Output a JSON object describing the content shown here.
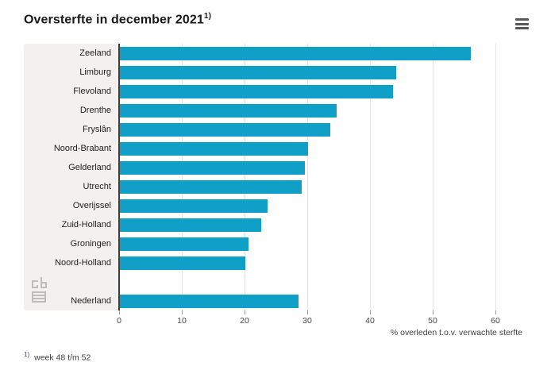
{
  "header": {
    "title": "Oversterfte in december 2021",
    "title_footnote_marker": "1)"
  },
  "chart_data": {
    "type": "bar",
    "orientation": "horizontal",
    "title": "Oversterfte in december 2021",
    "categories": [
      "Zeeland",
      "Limburg",
      "Flevoland",
      "Drenthe",
      "Fryslân",
      "Noord-Brabant",
      "Gelderland",
      "Utrecht",
      "Overijssel",
      "Zuid-Holland",
      "Groningen",
      "Noord-Holland",
      "Nederland"
    ],
    "values": [
      56,
      44,
      43.5,
      34.5,
      33.5,
      30,
      29.5,
      29,
      23.5,
      22.5,
      20.5,
      20,
      28.5
    ],
    "gap_before_last": true,
    "xlabel": "% overleden t.o.v. verwachte sterfte",
    "ylabel": "",
    "xlim": [
      0,
      60
    ],
    "xticks": [
      0,
      10,
      20,
      30,
      40,
      50,
      60
    ],
    "grid": "vertical",
    "legend": "none",
    "bar_color": "#0f9fc7",
    "panel_color": "#f2f1ef",
    "gridline_color": "#e4e4e4"
  },
  "footnote": {
    "marker": "1)",
    "text": "week 48 t/m 52"
  },
  "icons": {
    "menu": "hamburger-menu-icon",
    "logo": "cbs-logo"
  }
}
